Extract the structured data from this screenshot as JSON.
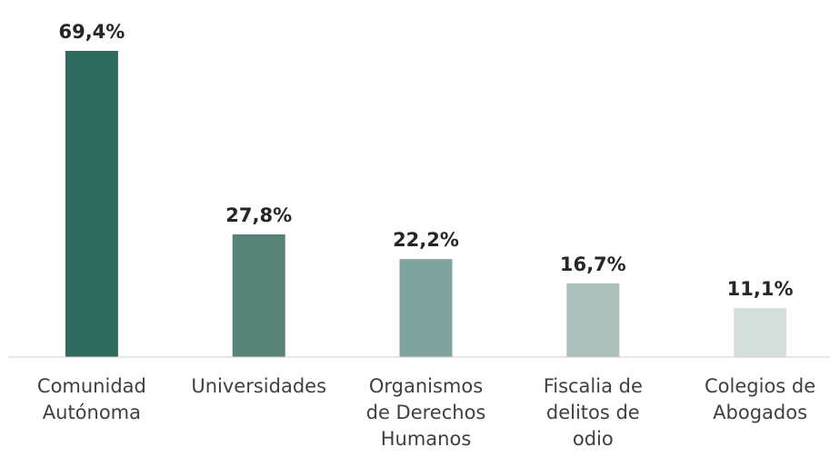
{
  "chart_data": {
    "type": "bar",
    "categories": [
      "Comunidad Autónoma",
      "Universidades",
      "Organismos de Derechos Humanos",
      "Fiscalia de delitos de odio",
      "Colegios de Abogados"
    ],
    "values": [
      69.4,
      27.8,
      22.2,
      16.7,
      11.1
    ],
    "value_labels": [
      "69,4%",
      "27,8%",
      "22,2%",
      "16,7%",
      "11,1%"
    ],
    "colors": [
      "#2e6a5e",
      "#588379",
      "#82a49e",
      "#adc2bd",
      "#d5e0dd"
    ],
    "ylim": [
      0,
      80
    ]
  }
}
